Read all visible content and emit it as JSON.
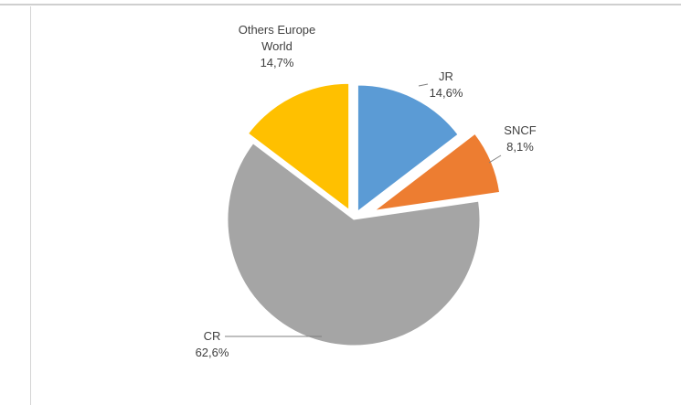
{
  "chart_data": {
    "type": "pie",
    "title": "",
    "exploded": true,
    "slices": [
      {
        "label_lines": [
          "JR"
        ],
        "pct_text": "14,6%",
        "value": 14.6,
        "color": "#5b9bd5"
      },
      {
        "label_lines": [
          "SNCF"
        ],
        "pct_text": "8,1%",
        "value": 8.1,
        "color": "#ed7d31"
      },
      {
        "label_lines": [
          "CR"
        ],
        "pct_text": "62,6%",
        "value": 62.6,
        "color": "#a5a5a5"
      },
      {
        "label_lines": [
          "Others Europe",
          "World"
        ],
        "pct_text": "14,7%",
        "value": 14.7,
        "color": "#ffc000"
      }
    ]
  }
}
